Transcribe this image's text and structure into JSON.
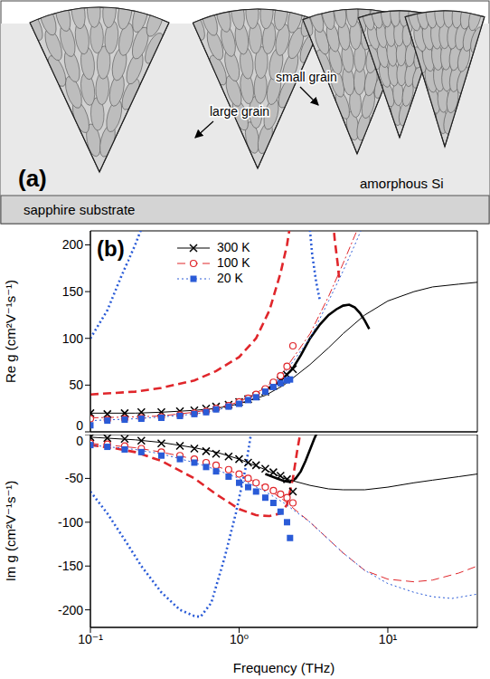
{
  "diagram": {
    "label": "(a)",
    "texts": {
      "small_grain": "small grain",
      "large_grain": "large grain",
      "amorphous": "amorphous Si",
      "substrate": "sapphire substrate"
    }
  },
  "chart_data": [
    {
      "type": "line",
      "title": "(b)",
      "y_label": "Re g (cm²V⁻¹s⁻¹)",
      "log": "x",
      "grid": false,
      "legend": "upper center",
      "tick_labels": "y",
      "xlim": [
        0.1,
        40
      ],
      "xticks": [
        {
          "value": 0.1,
          "label": "10⁻¹"
        },
        {
          "value": 1,
          "label": "10⁰"
        },
        {
          "value": 10,
          "label": "10¹"
        }
      ],
      "ylim": [
        0,
        215
      ],
      "yticks": [
        0,
        50,
        100,
        150,
        200
      ],
      "series": [
        {
          "name": "300 K",
          "type": "scatter",
          "color": "#000000",
          "marker": "x",
          "line_style": "solid",
          "x": [
            0.1,
            0.13,
            0.17,
            0.22,
            0.3,
            0.4,
            0.5,
            0.6,
            0.7,
            0.85,
            1.0,
            1.15,
            1.3,
            1.5,
            1.7,
            1.9,
            2.1,
            2.3
          ],
          "values": [
            20,
            19,
            20,
            21,
            21,
            22,
            23,
            25,
            27,
            29,
            32,
            35,
            38,
            43,
            49,
            55,
            61,
            67
          ]
        },
        {
          "name": "100 K",
          "type": "scatter",
          "color": "#e0262b",
          "marker": "o",
          "line_style": "dashed",
          "x": [
            0.1,
            0.13,
            0.17,
            0.22,
            0.3,
            0.4,
            0.5,
            0.6,
            0.7,
            0.85,
            1.0,
            1.15,
            1.3,
            1.5,
            1.7,
            1.9,
            2.1,
            2.3
          ],
          "values": [
            14,
            13,
            14,
            15,
            16,
            18,
            20,
            22,
            25,
            28,
            32,
            36,
            40,
            46,
            53,
            60,
            70,
            92
          ]
        },
        {
          "name": "20 K",
          "type": "scatter",
          "color": "#2a5bd7",
          "marker": "s",
          "line_style": "dotted",
          "x": [
            0.1,
            0.13,
            0.17,
            0.22,
            0.3,
            0.4,
            0.5,
            0.6,
            0.7,
            0.85,
            1.0,
            1.15,
            1.3,
            1.5,
            1.7,
            1.9,
            2.1,
            2.2
          ],
          "values": [
            7,
            12,
            13,
            14,
            15,
            17,
            19,
            21,
            24,
            27,
            30,
            34,
            37,
            43,
            48,
            52,
            55,
            56
          ]
        }
      ],
      "fits": [
        {
          "color": "#000000",
          "line_style": "solid",
          "x": [
            0.1,
            0.2,
            0.3,
            0.5,
            0.7,
            1,
            1.5,
            2,
            3,
            4,
            5,
            7,
            10,
            15,
            20,
            30,
            40
          ],
          "values": [
            20,
            20,
            21,
            23,
            25,
            30,
            39,
            50,
            72,
            90,
            105,
            125,
            140,
            150,
            155,
            158,
            160
          ]
        },
        {
          "color": "#e0262b",
          "line_style": "dashdot",
          "x": [
            0.1,
            0.2,
            0.3,
            0.5,
            0.7,
            1,
            1.5,
            2,
            3,
            4,
            5,
            6,
            7
          ],
          "values": [
            15,
            16,
            17,
            21,
            25,
            32,
            47,
            65,
            105,
            145,
            180,
            210,
            235
          ]
        },
        {
          "color": "#2a5bd7",
          "line_style": "dotted",
          "x": [
            0.1,
            0.2,
            0.3,
            0.5,
            0.7,
            1,
            1.5,
            2,
            3,
            4,
            5,
            6,
            7
          ],
          "values": [
            12,
            14,
            16,
            19,
            23,
            30,
            45,
            62,
            100,
            140,
            172,
            200,
            225
          ]
        }
      ],
      "models": [
        {
          "color": "#000000",
          "line_style": "solid",
          "x": [
            1.5,
            1.8,
            2,
            2.3,
            2.6,
            3,
            3.5,
            4,
            4.5,
            5,
            5.5,
            6,
            6.5,
            7,
            7.5
          ],
          "values": [
            45,
            52,
            58,
            68,
            82,
            100,
            115,
            125,
            131,
            135,
            136,
            133,
            127,
            119,
            110
          ]
        },
        {
          "color": "#e0262b",
          "line_style": "dashed",
          "x": [
            0.1,
            0.2,
            0.3,
            0.5,
            0.7,
            1,
            1.3,
            1.6,
            1.9,
            2.1,
            2.3,
            3.3,
            4.2,
            4.4,
            4.6,
            4.7
          ],
          "values": [
            40,
            43,
            47,
            55,
            65,
            80,
            100,
            130,
            170,
            200,
            240,
            null,
            240,
            205,
            180,
            165
          ]
        },
        {
          "color": "#2a5bd7",
          "line_style": "dotted",
          "x": [
            0.1,
            0.13,
            0.16,
            0.2,
            0.25,
            1.5,
            2.9,
            3.1,
            3.3,
            3.5
          ],
          "values": [
            100,
            130,
            165,
            200,
            240,
            null,
            240,
            190,
            160,
            140
          ]
        }
      ]
    },
    {
      "type": "line",
      "y_label": "Im g (cm²V⁻¹s⁻¹)",
      "x_label": "Frequency (THz)",
      "log": "x",
      "grid": false,
      "xlim": [
        0.1,
        40
      ],
      "xticks": [
        {
          "value": 0.1,
          "label": "10⁻¹"
        },
        {
          "value": 1,
          "label": "10⁰"
        },
        {
          "value": 10,
          "label": "10¹"
        }
      ],
      "ylim": [
        -220,
        0
      ],
      "yticks": [
        0,
        -50,
        -100,
        -150,
        -200
      ],
      "series": [
        {
          "name": "300 K",
          "type": "scatter",
          "color": "#000000",
          "marker": "x",
          "line_style": "solid",
          "x": [
            0.1,
            0.13,
            0.17,
            0.22,
            0.3,
            0.4,
            0.5,
            0.6,
            0.7,
            0.85,
            1.0,
            1.15,
            1.3,
            1.5,
            1.7,
            1.9,
            2.1,
            2.3
          ],
          "values": [
            -3,
            -4,
            -5,
            -7,
            -10,
            -13,
            -16,
            -19,
            -22,
            -25,
            -28,
            -32,
            -35,
            -39,
            -43,
            -47,
            -51,
            -65
          ]
        },
        {
          "name": "100 K",
          "type": "scatter",
          "color": "#e0262b",
          "marker": "o",
          "line_style": "dashed",
          "x": [
            0.1,
            0.13,
            0.17,
            0.22,
            0.3,
            0.4,
            0.5,
            0.6,
            0.7,
            0.85,
            1.0,
            1.15,
            1.3,
            1.5,
            1.7,
            1.9,
            2.1,
            2.3
          ],
          "values": [
            -10,
            -11,
            -13,
            -16,
            -20,
            -24,
            -28,
            -32,
            -35,
            -40,
            -45,
            -50,
            -55,
            -60,
            -64,
            -68,
            -72,
            -78
          ]
        },
        {
          "name": "20 K",
          "type": "scatter",
          "color": "#2a5bd7",
          "marker": "s",
          "line_style": "dotted",
          "x": [
            0.1,
            0.13,
            0.17,
            0.22,
            0.3,
            0.4,
            0.5,
            0.6,
            0.7,
            0.85,
            1.0,
            1.15,
            1.3,
            1.5,
            1.7,
            1.9,
            2.1,
            2.2
          ],
          "values": [
            -12,
            -14,
            -17,
            -20,
            -24,
            -28,
            -32,
            -37,
            -42,
            -48,
            -55,
            -60,
            -65,
            -72,
            -78,
            -88,
            -100,
            -118
          ]
        }
      ],
      "fits": [
        {
          "color": "#000000",
          "line_style": "solid",
          "x": [
            0.1,
            0.2,
            0.3,
            0.5,
            0.7,
            1,
            1.5,
            2,
            3,
            4,
            5,
            7,
            10,
            15,
            20,
            30,
            40
          ],
          "values": [
            -3,
            -6,
            -9,
            -15,
            -20,
            -28,
            -40,
            -50,
            -58,
            -62,
            -63,
            -63,
            -60,
            -55,
            -52,
            -48,
            -45
          ]
        },
        {
          "color": "#e0262b",
          "line_style": "dashed",
          "x": [
            0.1,
            0.2,
            0.3,
            0.5,
            0.7,
            1,
            1.5,
            2,
            3,
            5,
            7,
            10,
            15,
            20,
            30,
            40
          ],
          "values": [
            -10,
            -15,
            -20,
            -28,
            -36,
            -45,
            -60,
            -75,
            -100,
            -135,
            -155,
            -165,
            -168,
            -166,
            -158,
            -150
          ]
        },
        {
          "color": "#2a5bd7",
          "line_style": "dotted",
          "x": [
            0.1,
            0.2,
            0.3,
            0.5,
            0.7,
            1,
            1.5,
            2,
            3,
            5,
            7,
            10,
            15,
            20,
            27,
            40
          ],
          "values": [
            -12,
            -17,
            -22,
            -32,
            -40,
            -50,
            -65,
            -78,
            -100,
            -135,
            -155,
            -170,
            -180,
            -185,
            -187,
            -182
          ]
        }
      ],
      "models": [
        {
          "color": "#000000",
          "line_style": "solid",
          "x": [
            1.5,
            1.8,
            2,
            2.2,
            2.4,
            2.6,
            2.8,
            3,
            3.2,
            3.4,
            3.6
          ],
          "values": [
            -45,
            -50,
            -53,
            -54,
            -50,
            -42,
            -30,
            -17,
            -5,
            5,
            15
          ]
        },
        {
          "color": "#e0262b",
          "line_style": "dashed",
          "x": [
            0.1,
            0.15,
            0.2,
            0.3,
            0.5,
            0.7,
            1,
            1.3,
            1.6,
            1.9,
            2.1,
            2.3,
            2.45,
            2.6
          ],
          "values": [
            -12,
            -16,
            -20,
            -30,
            -50,
            -68,
            -85,
            -92,
            -93,
            -90,
            -80,
            -50,
            -20,
            5
          ]
        },
        {
          "color": "#2a5bd7",
          "line_style": "dotted",
          "x": [
            0.1,
            0.13,
            0.17,
            0.22,
            0.3,
            0.4,
            0.5,
            0.55,
            0.65,
            0.8,
            0.95,
            1.1,
            1.2,
            1.3
          ],
          "values": [
            -65,
            -90,
            -120,
            -150,
            -180,
            -200,
            -207,
            -208,
            -192,
            -140,
            -90,
            -40,
            0,
            15
          ]
        }
      ]
    }
  ]
}
